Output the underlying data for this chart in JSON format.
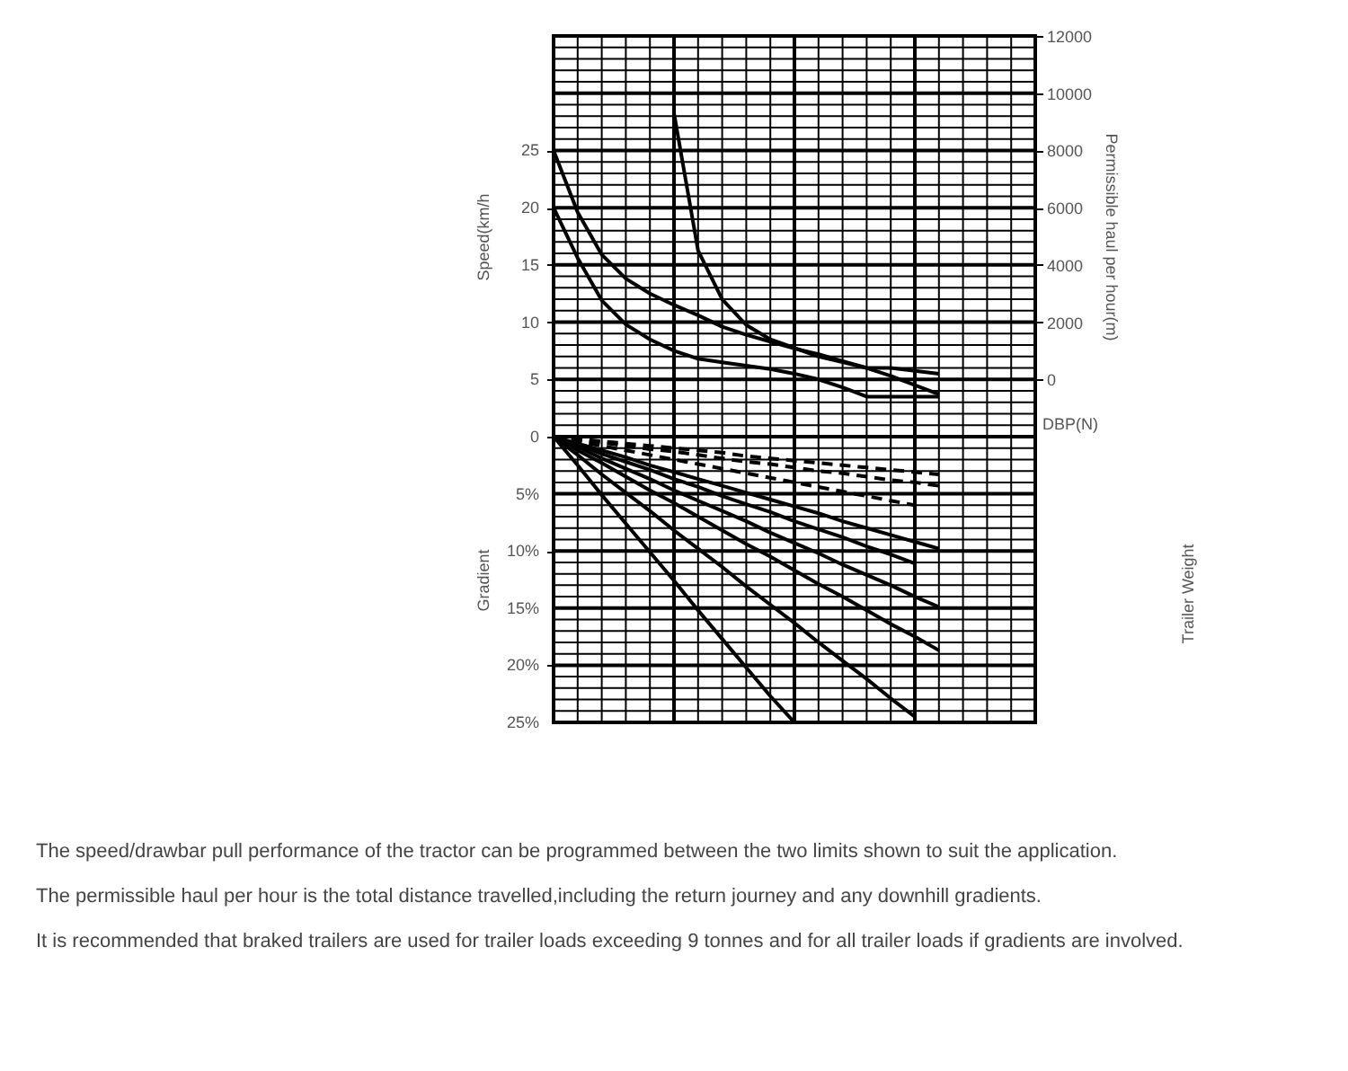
{
  "chart_data": [
    {
      "type": "line",
      "xlabel": "DBP(N)",
      "ylabel": "Speed(km/h",
      "y2label": "Permissible haul per hour(m)",
      "categories": [
        null,
        null,
        null,
        null,
        null,
        null,
        null,
        null,
        null,
        null,
        null,
        null,
        null,
        null,
        null,
        null,
        null,
        null,
        null,
        null,
        null
      ],
      "ylim": [
        0,
        35
      ],
      "yticks": [
        {
          "value": 0,
          "label": null
        },
        {
          "value": 1,
          "label": null
        },
        {
          "value": 2,
          "label": null
        },
        {
          "value": 3,
          "label": null
        },
        {
          "value": 4,
          "label": null
        },
        5,
        {
          "value": 6,
          "label": null
        },
        {
          "value": 7,
          "label": null
        },
        {
          "value": 8,
          "label": null
        },
        {
          "value": 9,
          "label": null
        },
        10,
        {
          "value": 11,
          "label": null
        },
        {
          "value": 12,
          "label": null
        },
        {
          "value": 13,
          "label": null
        },
        {
          "value": 14,
          "label": null
        },
        15,
        {
          "value": 16,
          "label": null
        },
        {
          "value": 17,
          "label": null
        },
        {
          "value": 18,
          "label": null
        },
        {
          "value": 19,
          "label": null
        },
        20,
        {
          "value": 21,
          "label": null
        },
        {
          "value": 22,
          "label": null
        },
        {
          "value": 23,
          "label": null
        },
        {
          "value": 24,
          "label": null
        },
        25,
        {
          "value": 26,
          "label": null
        },
        {
          "value": 27,
          "label": null
        },
        {
          "value": 28,
          "label": null
        },
        {
          "value": 29,
          "label": null
        },
        {
          "value": 30,
          "label": null
        },
        {
          "value": 31,
          "label": null
        },
        {
          "value": 32,
          "label": null
        },
        {
          "value": 33,
          "label": null
        },
        {
          "value": 34,
          "label": null
        },
        {
          "value": 35,
          "label": null
        }
      ],
      "y2lim": [
        -2000,
        12000
      ],
      "y2ticks": [
        0,
        2000,
        4000,
        6000,
        8000,
        10000,
        12000
      ],
      "grid": true,
      "tick_labels": "y",
      "marker": "none",
      "series": [
        {
          "color": "#000000",
          "values": [
            25,
            19.6,
            15.9,
            13.8,
            12.5,
            11.5,
            10.6,
            9.6,
            8.9,
            8.3,
            7.7,
            7.2,
            6.6,
            6.0,
            5.3,
            4.5,
            3.7,
            null,
            null,
            null,
            null
          ]
        },
        {
          "color": "#000000",
          "values": [
            20,
            15.6,
            11.9,
            9.8,
            8.5,
            7.5,
            6.8,
            6.5,
            6.2,
            5.9,
            5.5,
            5.0,
            4.3,
            3.5,
            3.5,
            3.5,
            3.5,
            null,
            null,
            null,
            null
          ]
        },
        {
          "color": "#000000",
          "axis": "y2",
          "values": [
            null,
            null,
            null,
            null,
            null,
            9300,
            4500,
            2800,
            1900,
            1400,
            1100,
            800,
            600,
            400,
            400,
            300,
            200,
            null,
            null,
            null,
            null
          ]
        }
      ]
    },
    {
      "type": "line",
      "ylabel": "Gradient",
      "y2label": "Trailer Weight",
      "categories": [
        null,
        null,
        null,
        null,
        null,
        null,
        null,
        null,
        null,
        null,
        null,
        null,
        null,
        null,
        null,
        null,
        null,
        null,
        null,
        null,
        null
      ],
      "ylim": [
        25,
        0
      ],
      "yticks": [
        0,
        {
          "value": 1,
          "label": null
        },
        {
          "value": 2,
          "label": null
        },
        {
          "value": 3,
          "label": null
        },
        {
          "value": 4,
          "label": null
        },
        {
          "value": 5,
          "label": "5%"
        },
        {
          "value": 6,
          "label": null
        },
        {
          "value": 7,
          "label": null
        },
        {
          "value": 8,
          "label": null
        },
        {
          "value": 9,
          "label": null
        },
        {
          "value": 10,
          "label": "10%"
        },
        {
          "value": 11,
          "label": null
        },
        {
          "value": 12,
          "label": null
        },
        {
          "value": 13,
          "label": null
        },
        {
          "value": 14,
          "label": null
        },
        {
          "value": 15,
          "label": "15%"
        },
        {
          "value": 16,
          "label": null
        },
        {
          "value": 17,
          "label": null
        },
        {
          "value": 18,
          "label": null
        },
        {
          "value": 19,
          "label": null
        },
        {
          "value": 20,
          "label": "20%"
        },
        {
          "value": 21,
          "label": null
        },
        {
          "value": 22,
          "label": null
        },
        {
          "value": 23,
          "label": null
        },
        {
          "value": 24,
          "label": null
        },
        {
          "value": 25,
          "label": "25%"
        }
      ],
      "grid": true,
      "tick_labels": "y",
      "marker": "none",
      "annotations": [
        "The speed/drawbar pull performance of the tractor can be programmed between the two limits shown to suit the application.",
        "The permissible haul per hour is the total distance travelled,including the return journey and any downhill gradients.",
        "It is recommended that braked trailers are used for trailer loads exceeding 9 tonnes and for all trailer loads if gradients are involved."
      ],
      "series": [
        {
          "color": "#000000",
          "line_style": "dashed",
          "values": [
            0,
            0.2,
            0.4,
            0.6,
            0.8,
            1.0,
            1.2,
            1.4,
            1.7,
            1.9,
            2.1,
            2.3,
            2.5,
            2.7,
            2.9,
            3.1,
            3.3,
            null,
            null,
            null,
            null
          ]
        },
        {
          "color": "#000000",
          "line_style": "dashed",
          "values": [
            0,
            0.3,
            0.5,
            0.8,
            1.1,
            1.3,
            1.6,
            1.9,
            2.2,
            2.4,
            2.7,
            3.0,
            3.2,
            3.5,
            3.8,
            4.0,
            4.3,
            null,
            null,
            null,
            null
          ]
        },
        {
          "color": "#000000",
          "line_style": "dashed",
          "values": [
            0,
            0.4,
            0.8,
            1.2,
            1.6,
            2.0,
            2.4,
            2.8,
            3.2,
            3.6,
            4.0,
            4.4,
            4.8,
            5.2,
            5.6,
            6.0,
            null,
            null,
            null,
            null,
            null
          ]
        },
        {
          "color": "#000000",
          "values": [
            0,
            0.6,
            1.2,
            1.8,
            2.5,
            3.1,
            3.7,
            4.3,
            4.9,
            5.5,
            6.1,
            6.7,
            7.4,
            8.0,
            8.6,
            9.2,
            9.8,
            null,
            null,
            null,
            null
          ]
        },
        {
          "color": "#000000",
          "values": [
            0,
            0.7,
            1.5,
            2.2,
            2.9,
            3.7,
            4.4,
            5.2,
            5.9,
            6.6,
            7.4,
            8.1,
            8.8,
            9.6,
            10.3,
            11.1,
            null,
            null,
            null,
            null,
            null
          ]
        },
        {
          "color": "#000000",
          "values": [
            0,
            0.9,
            1.9,
            2.8,
            3.7,
            4.7,
            5.6,
            6.5,
            7.4,
            8.4,
            9.3,
            10.2,
            11.2,
            12.1,
            13.0,
            14.0,
            14.9,
            null,
            null,
            null,
            null
          ]
        },
        {
          "color": "#000000",
          "values": [
            0,
            1.2,
            2.3,
            3.5,
            4.7,
            5.8,
            7.0,
            8.2,
            9.4,
            10.5,
            11.7,
            12.9,
            14.0,
            15.2,
            16.4,
            17.5,
            18.7,
            null,
            null,
            null,
            null
          ]
        },
        {
          "color": "#000000",
          "values": [
            0,
            1.6,
            3.3,
            4.9,
            6.5,
            8.2,
            9.8,
            11.4,
            13.1,
            14.7,
            16.3,
            18.0,
            19.6,
            21.2,
            22.9,
            24.5,
            null,
            null,
            null,
            null,
            null
          ]
        },
        {
          "color": "#000000",
          "values": [
            0,
            2.5,
            5.1,
            7.6,
            10.1,
            12.6,
            15.2,
            17.7,
            20.2,
            22.7,
            25,
            null,
            null,
            null,
            null,
            null,
            null,
            null,
            null,
            null,
            null
          ]
        }
      ]
    }
  ]
}
